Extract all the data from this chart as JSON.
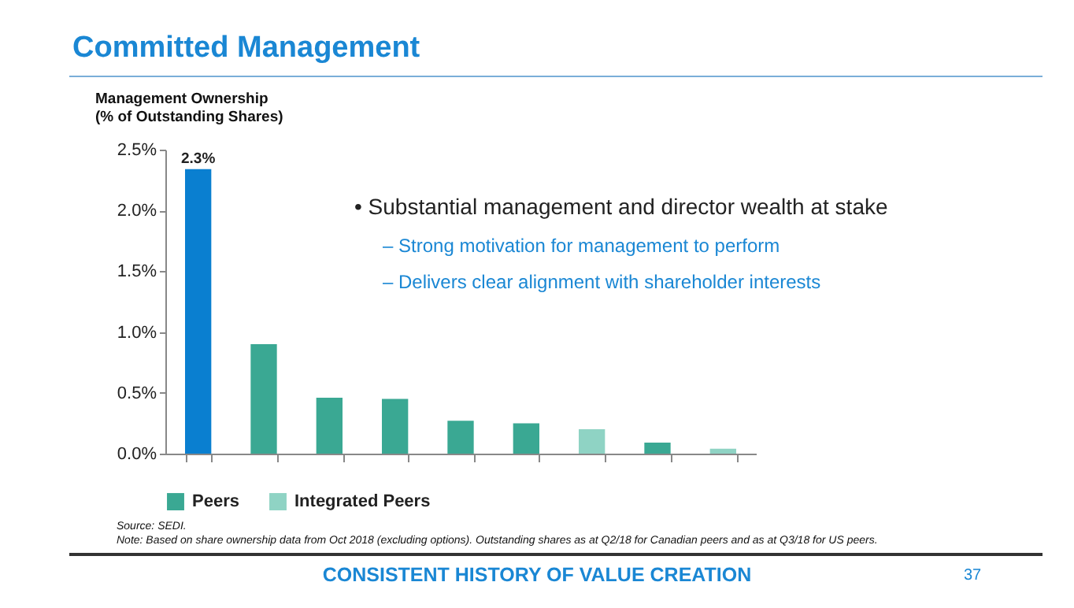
{
  "chart_data": {
    "type": "bar",
    "title": "Committed Management",
    "ylabel": "Management Ownership\n(% of Outstanding Shares)",
    "categories": [
      null,
      null,
      null,
      null,
      null,
      null,
      null,
      null,
      null
    ],
    "series": [
      {
        "color": "#0a7fd0",
        "values": [
          2.34,
          null,
          null,
          null,
          null,
          null,
          null,
          null,
          null
        ],
        "value_labels": [
          "2.3%",
          null,
          null,
          null,
          null,
          null,
          null,
          null,
          null
        ]
      },
      {
        "name": "Peers",
        "color": "#3aa893",
        "values": [
          null,
          0.9,
          0.46,
          0.45,
          0.27,
          0.25,
          null,
          0.09,
          null
        ]
      },
      {
        "name": "Integrated Peers",
        "color": "#8fd3c4",
        "values": [
          null,
          null,
          null,
          null,
          null,
          null,
          0.2,
          null,
          0.04
        ]
      }
    ],
    "ylim": [
      0,
      2.5
    ],
    "yticks": [
      {
        "value": 0,
        "label": "0.0%"
      },
      {
        "value": 0.5,
        "label": "0.5%"
      },
      {
        "value": 1,
        "label": "1.0%"
      },
      {
        "value": 1.5,
        "label": "1.5%"
      },
      {
        "value": 2,
        "label": "2.0%"
      },
      {
        "value": 2.5,
        "label": "2.5%"
      }
    ],
    "tick_labels": "y",
    "grid": false,
    "legend": "bottom",
    "annotations": [
      "• Substantial management and director wealth at stake",
      "– Strong motivation for management to perform",
      "– Delivers clear alignment with shareholder interests",
      "Source: SEDI.",
      "Note: Based on share ownership data from Oct 2018 (excluding options). Outstanding shares as at Q2/18 for Canadian peers and as at Q3/18 for US peers.",
      "CONSISTENT HISTORY OF VALUE CREATION",
      "37"
    ]
  }
}
